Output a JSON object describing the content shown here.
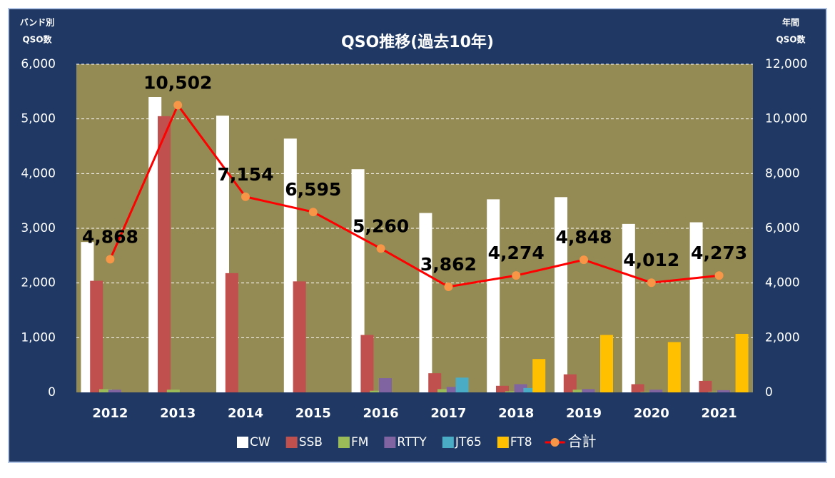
{
  "chart_data": {
    "type": "bar",
    "title": "QSO推移(過去10年)",
    "y_label": [
      "バンド別",
      "QSO数"
    ],
    "y2_label": [
      "年間",
      "QSO数"
    ],
    "categories": [
      "2012",
      "2013",
      "2014",
      "2015",
      "2016",
      "2017",
      "2018",
      "2019",
      "2020",
      "2021"
    ],
    "ylim": [
      0,
      6000
    ],
    "yticks": [
      0,
      {
        "value": 1000,
        "label": "1,000"
      },
      {
        "value": 2000,
        "label": "2,000"
      },
      {
        "value": 3000,
        "label": "3,000"
      },
      {
        "value": 4000,
        "label": "4,000"
      },
      {
        "value": 5000,
        "label": "5,000"
      },
      {
        "value": 6000,
        "label": "6,000"
      }
    ],
    "y2lim": [
      0,
      12000
    ],
    "y2ticks": [
      0,
      {
        "value": 2000,
        "label": "2,000"
      },
      {
        "value": 4000,
        "label": "4,000"
      },
      {
        "value": 6000,
        "label": "6,000"
      },
      {
        "value": 8000,
        "label": "8,000"
      },
      {
        "value": 10000,
        "label": "10,000"
      },
      {
        "value": 12000,
        "label": "12,000"
      }
    ],
    "grid": true,
    "series": [
      {
        "name": "CW",
        "color": "#ffffff",
        "values": [
          2750,
          5400,
          5060,
          4640,
          4080,
          3280,
          3530,
          3570,
          3080,
          3110
        ]
      },
      {
        "name": "SSB",
        "color": "#c0504d",
        "values": [
          2040,
          5050,
          2180,
          2030,
          1050,
          350,
          120,
          330,
          150,
          210
        ]
      },
      {
        "name": "FM",
        "color": "#9bbb59",
        "values": [
          60,
          50,
          0,
          0,
          30,
          60,
          20,
          50,
          10,
          10
        ]
      },
      {
        "name": "RTTY",
        "color": "#8064a2",
        "values": [
          50,
          0,
          0,
          0,
          260,
          100,
          150,
          60,
          50,
          40
        ]
      },
      {
        "name": "JT65",
        "color": "#4bacc6",
        "values": [
          0,
          0,
          0,
          0,
          0,
          270,
          80,
          0,
          0,
          0
        ]
      },
      {
        "name": "FT8",
        "color": "#ffc000",
        "values": [
          0,
          0,
          0,
          0,
          0,
          0,
          610,
          1050,
          920,
          1070
        ]
      },
      {
        "name": "合計",
        "type": "line",
        "axis": "y2",
        "color": "#ff0000",
        "marker_color": "#f79646",
        "values": [
          4868,
          10502,
          7154,
          6595,
          5260,
          3862,
          4274,
          4848,
          4012,
          4273
        ],
        "value_labels": [
          "4,868",
          "10,502",
          "7,154",
          "6,595",
          "5,260",
          "3,862",
          "4,274",
          "4,848",
          "4,012",
          "4,273"
        ]
      }
    ]
  }
}
